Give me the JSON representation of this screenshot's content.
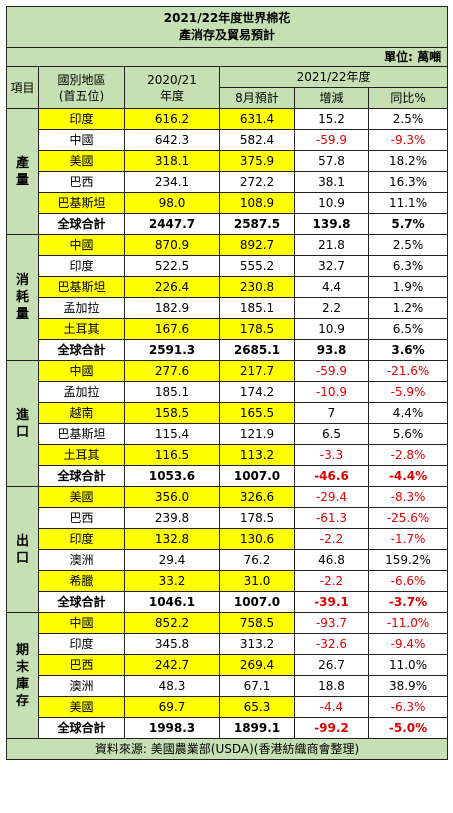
{
  "title": {
    "line1": "2021/22年度世界棉花",
    "line2": "產消存及貿易預計"
  },
  "unit": "單位: 萬噸",
  "headers": {
    "item": "項目",
    "region": "國別地區",
    "region_sub": "(首五位)",
    "season1": "2020/21",
    "season1_sub": "年度",
    "season2": "2021/22年度",
    "aug": "8月預計",
    "change": "增減",
    "yoy": "同比%"
  },
  "sections": [
    {
      "name": "產量",
      "rows": [
        {
          "country": "印度",
          "v2020": "616.2",
          "aug": "631.4",
          "change": "15.2",
          "yoy": "2.5%",
          "highlight": true,
          "neg_change": false,
          "neg_yoy": false,
          "total": false
        },
        {
          "country": "中國",
          "v2020": "642.3",
          "aug": "582.4",
          "change": "-59.9",
          "yoy": "-9.3%",
          "highlight": false,
          "neg_change": true,
          "neg_yoy": true,
          "total": false
        },
        {
          "country": "美國",
          "v2020": "318.1",
          "aug": "375.9",
          "change": "57.8",
          "yoy": "18.2%",
          "highlight": true,
          "neg_change": false,
          "neg_yoy": false,
          "total": false
        },
        {
          "country": "巴西",
          "v2020": "234.1",
          "aug": "272.2",
          "change": "38.1",
          "yoy": "16.3%",
          "highlight": false,
          "neg_change": false,
          "neg_yoy": false,
          "total": false
        },
        {
          "country": "巴基斯坦",
          "v2020": "98.0",
          "aug": "108.9",
          "change": "10.9",
          "yoy": "11.1%",
          "highlight": true,
          "neg_change": false,
          "neg_yoy": false,
          "total": false
        },
        {
          "country": "全球合計",
          "v2020": "2447.7",
          "aug": "2587.5",
          "change": "139.8",
          "yoy": "5.7%",
          "highlight": false,
          "neg_change": false,
          "neg_yoy": false,
          "total": true
        }
      ]
    },
    {
      "name": "消耗量",
      "rows": [
        {
          "country": "中國",
          "v2020": "870.9",
          "aug": "892.7",
          "change": "21.8",
          "yoy": "2.5%",
          "highlight": true,
          "neg_change": false,
          "neg_yoy": false,
          "total": false
        },
        {
          "country": "印度",
          "v2020": "522.5",
          "aug": "555.2",
          "change": "32.7",
          "yoy": "6.3%",
          "highlight": false,
          "neg_change": false,
          "neg_yoy": false,
          "total": false
        },
        {
          "country": "巴基斯坦",
          "v2020": "226.4",
          "aug": "230.8",
          "change": "4.4",
          "yoy": "1.9%",
          "highlight": true,
          "neg_change": false,
          "neg_yoy": false,
          "total": false
        },
        {
          "country": "孟加拉",
          "v2020": "182.9",
          "aug": "185.1",
          "change": "2.2",
          "yoy": "1.2%",
          "highlight": false,
          "neg_change": false,
          "neg_yoy": false,
          "total": false
        },
        {
          "country": "土耳其",
          "v2020": "167.6",
          "aug": "178.5",
          "change": "10.9",
          "yoy": "6.5%",
          "highlight": true,
          "neg_change": false,
          "neg_yoy": false,
          "total": false
        },
        {
          "country": "全球合計",
          "v2020": "2591.3",
          "aug": "2685.1",
          "change": "93.8",
          "yoy": "3.6%",
          "highlight": false,
          "neg_change": false,
          "neg_yoy": false,
          "total": true
        }
      ]
    },
    {
      "name": "進口",
      "rows": [
        {
          "country": "中國",
          "v2020": "277.6",
          "aug": "217.7",
          "change": "-59.9",
          "yoy": "-21.6%",
          "highlight": true,
          "neg_change": true,
          "neg_yoy": true,
          "total": false
        },
        {
          "country": "孟加拉",
          "v2020": "185.1",
          "aug": "174.2",
          "change": "-10.9",
          "yoy": "-5.9%",
          "highlight": false,
          "neg_change": true,
          "neg_yoy": true,
          "total": false
        },
        {
          "country": "越南",
          "v2020": "158.5",
          "aug": "165.5",
          "change": "7",
          "yoy": "4.4%",
          "highlight": true,
          "neg_change": false,
          "neg_yoy": false,
          "total": false
        },
        {
          "country": "巴基斯坦",
          "v2020": "115.4",
          "aug": "121.9",
          "change": "6.5",
          "yoy": "5.6%",
          "highlight": false,
          "neg_change": false,
          "neg_yoy": false,
          "total": false
        },
        {
          "country": "土耳其",
          "v2020": "116.5",
          "aug": "113.2",
          "change": "-3.3",
          "yoy": "-2.8%",
          "highlight": true,
          "neg_change": true,
          "neg_yoy": true,
          "total": false
        },
        {
          "country": "全球合計",
          "v2020": "1053.6",
          "aug": "1007.0",
          "change": "-46.6",
          "yoy": "-4.4%",
          "highlight": false,
          "neg_change": true,
          "neg_yoy": true,
          "total": true
        }
      ]
    },
    {
      "name": "出口",
      "rows": [
        {
          "country": "美國",
          "v2020": "356.0",
          "aug": "326.6",
          "change": "-29.4",
          "yoy": "-8.3%",
          "highlight": true,
          "neg_change": true,
          "neg_yoy": true,
          "total": false
        },
        {
          "country": "巴西",
          "v2020": "239.8",
          "aug": "178.5",
          "change": "-61.3",
          "yoy": "-25.6%",
          "highlight": false,
          "neg_change": true,
          "neg_yoy": true,
          "total": false
        },
        {
          "country": "印度",
          "v2020": "132.8",
          "aug": "130.6",
          "change": "-2.2",
          "yoy": "-1.7%",
          "highlight": true,
          "neg_change": true,
          "neg_yoy": true,
          "total": false
        },
        {
          "country": "澳洲",
          "v2020": "29.4",
          "aug": "76.2",
          "change": "46.8",
          "yoy": "159.2%",
          "highlight": false,
          "neg_change": false,
          "neg_yoy": false,
          "total": false
        },
        {
          "country": "希臘",
          "v2020": "33.2",
          "aug": "31.0",
          "change": "-2.2",
          "yoy": "-6.6%",
          "highlight": true,
          "neg_change": true,
          "neg_yoy": true,
          "total": false
        },
        {
          "country": "全球合計",
          "v2020": "1046.1",
          "aug": "1007.0",
          "change": "-39.1",
          "yoy": "-3.7%",
          "highlight": false,
          "neg_change": true,
          "neg_yoy": true,
          "total": true
        }
      ]
    },
    {
      "name": "期末庫存",
      "rows": [
        {
          "country": "中國",
          "v2020": "852.2",
          "aug": "758.5",
          "change": "-93.7",
          "yoy": "-11.0%",
          "highlight": true,
          "neg_change": true,
          "neg_yoy": true,
          "total": false
        },
        {
          "country": "印度",
          "v2020": "345.8",
          "aug": "313.2",
          "change": "-32.6",
          "yoy": "-9.4%",
          "highlight": false,
          "neg_change": true,
          "neg_yoy": true,
          "total": false
        },
        {
          "country": "巴西",
          "v2020": "242.7",
          "aug": "269.4",
          "change": "26.7",
          "yoy": "11.0%",
          "highlight": true,
          "neg_change": false,
          "neg_yoy": false,
          "total": false
        },
        {
          "country": "澳洲",
          "v2020": "48.3",
          "aug": "67.1",
          "change": "18.8",
          "yoy": "38.9%",
          "highlight": false,
          "neg_change": false,
          "neg_yoy": false,
          "total": false
        },
        {
          "country": "美國",
          "v2020": "69.7",
          "aug": "65.3",
          "change": "-4.4",
          "yoy": "-6.3%",
          "highlight": true,
          "neg_change": true,
          "neg_yoy": true,
          "total": false
        },
        {
          "country": "全球合計",
          "v2020": "1998.3",
          "aug": "1899.1",
          "change": "-99.2",
          "yoy": "-5.0%",
          "highlight": false,
          "neg_change": true,
          "neg_yoy": true,
          "total": true
        }
      ]
    }
  ],
  "footer": "資料來源: 美國農業部(USDA)(香港紡織商會整理)",
  "colors": {
    "header_green": "#c6e0b4",
    "highlight_yellow": "#ffff00",
    "negative_red": "#e00000"
  }
}
